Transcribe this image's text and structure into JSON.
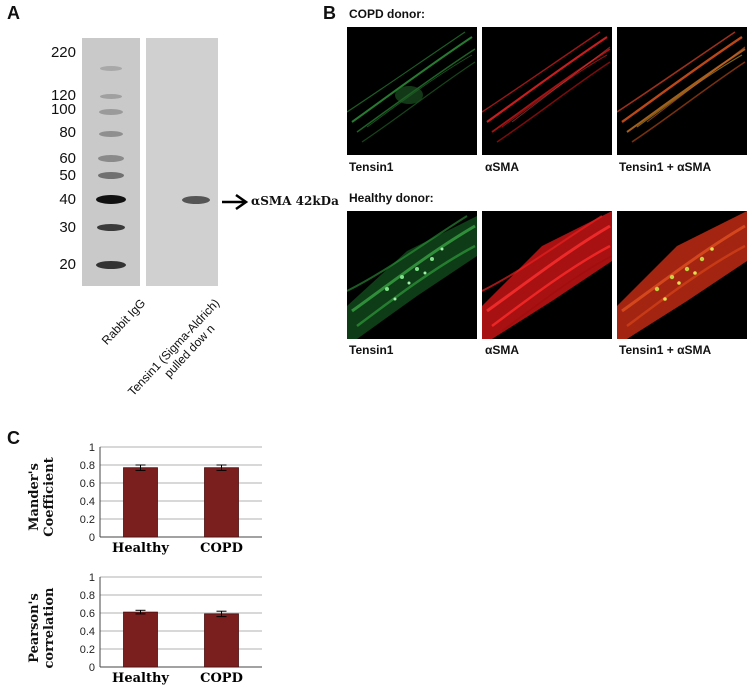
{
  "panelA": {
    "letter": "A",
    "mw_markers": [
      "220",
      "120",
      "100",
      "80",
      "60",
      "50",
      "40",
      "30",
      "20"
    ],
    "lanes": [
      {
        "label": "Rabbit IgG"
      },
      {
        "label_line1": "Tensin1 (Sigma-Aldrich)",
        "label_line2": "pulled dow n"
      }
    ],
    "arrow_label": "αSMA 42kDa"
  },
  "panelB": {
    "letter": "B",
    "copd_label": "COPD donor:",
    "healthy_label": "Healthy donor:",
    "captions": [
      "Tensin1",
      "αSMA",
      "Tensin1 + αSMA"
    ],
    "colors": {
      "green": "#2f9a3c",
      "red": "#e02020",
      "merge": "#b07020"
    }
  },
  "panelC": {
    "letter": "C"
  },
  "chart_data": [
    {
      "type": "bar",
      "categories": [
        "Healthy",
        "COPD"
      ],
      "values": [
        0.77,
        0.77
      ],
      "errors": [
        0.03,
        0.03
      ],
      "ylabel_line1": "Mander's",
      "ylabel_line2": "Coefficient",
      "ylim": [
        0,
        1
      ],
      "yticks": [
        "0",
        "0.2",
        "0.4",
        "0.6",
        "0.8",
        "1"
      ],
      "bar_color": "#7b1e1e",
      "grid": true
    },
    {
      "type": "bar",
      "categories": [
        "Healthy",
        "COPD"
      ],
      "values": [
        0.61,
        0.59
      ],
      "errors": [
        0.02,
        0.03
      ],
      "ylabel_line1": "Pearson's",
      "ylabel_line2": "correlation",
      "ylim": [
        0,
        1
      ],
      "yticks": [
        "0",
        "0.2",
        "0.4",
        "0.6",
        "0.8",
        "1"
      ],
      "bar_color": "#7b1e1e",
      "grid": true
    }
  ]
}
